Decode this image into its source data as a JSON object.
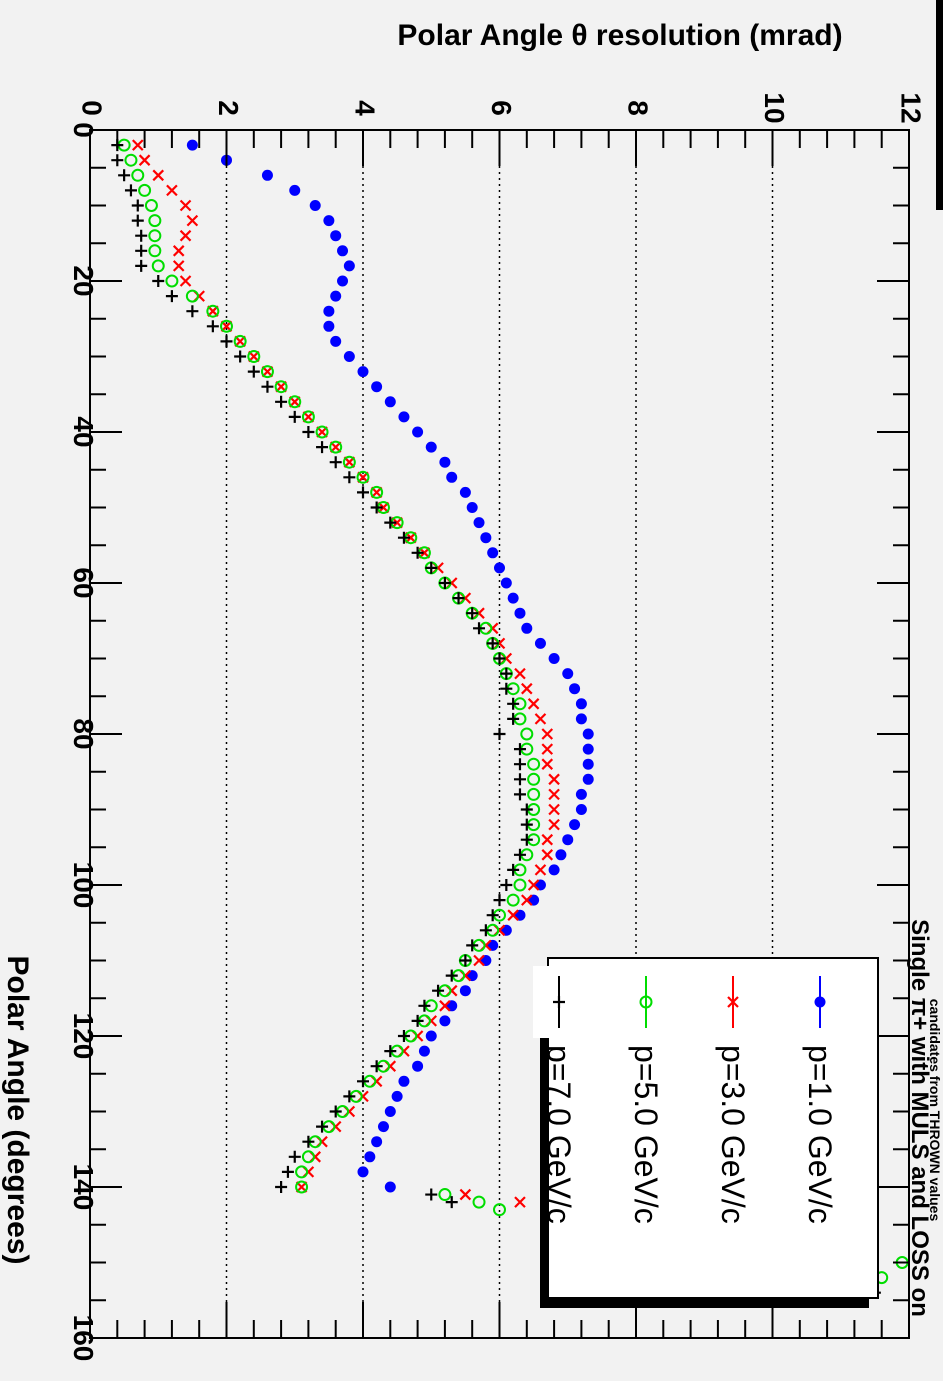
{
  "chart_data": {
    "type": "scatter",
    "title": "Single π+ with MULS and LOSS on",
    "subtitle": "candidates from THROWN values",
    "xlabel": "Polar Angle (degrees)",
    "ylabel": "Polar Angle θ resolution (mrad)",
    "xlim": [
      0,
      160
    ],
    "ylim": [
      0,
      12
    ],
    "xticks": [
      0,
      20,
      40,
      60,
      80,
      100,
      120,
      140,
      160
    ],
    "yticks": [
      0,
      2,
      4,
      6,
      8,
      10,
      12
    ],
    "grid": "horizontal dotted at y=2,4,6,8,10",
    "orientation": "figure rotated 90° clockwise",
    "legend_position": "upper-right",
    "series": [
      {
        "name": "p=1.0 GeV/c",
        "color": "#0000ff",
        "marker": "circle-filled",
        "x": [
          2,
          4,
          6,
          8,
          10,
          12,
          14,
          16,
          18,
          20,
          22,
          24,
          26,
          28,
          30,
          32,
          34,
          36,
          38,
          40,
          42,
          44,
          46,
          48,
          50,
          52,
          54,
          56,
          58,
          60,
          62,
          64,
          66,
          68,
          70,
          72,
          74,
          76,
          78,
          80,
          82,
          84,
          86,
          88,
          90,
          92,
          94,
          96,
          98,
          100,
          102,
          104,
          106,
          108,
          110,
          112,
          114,
          116,
          118,
          120,
          122,
          124,
          126,
          128,
          130,
          132,
          134,
          136,
          138,
          140
        ],
        "y": [
          1.5,
          2.0,
          2.6,
          3.0,
          3.3,
          3.5,
          3.6,
          3.7,
          3.8,
          3.7,
          3.6,
          3.5,
          3.5,
          3.6,
          3.8,
          4.0,
          4.2,
          4.4,
          4.6,
          4.8,
          5.0,
          5.2,
          5.3,
          5.5,
          5.6,
          5.7,
          5.8,
          5.9,
          6.0,
          6.1,
          6.2,
          6.3,
          6.4,
          6.6,
          6.8,
          7.0,
          7.1,
          7.2,
          7.2,
          7.3,
          7.3,
          7.3,
          7.3,
          7.2,
          7.2,
          7.1,
          7.0,
          6.9,
          6.8,
          6.6,
          6.5,
          6.3,
          6.1,
          5.9,
          5.8,
          5.6,
          5.5,
          5.3,
          5.2,
          5.0,
          4.9,
          4.8,
          4.6,
          4.5,
          4.4,
          4.3,
          4.2,
          4.1,
          4.0,
          4.4
        ]
      },
      {
        "name": "p=3.0 GeV/c",
        "color": "#ff0000",
        "marker": "x",
        "x": [
          2,
          4,
          6,
          8,
          10,
          12,
          14,
          16,
          18,
          20,
          22,
          24,
          26,
          28,
          30,
          32,
          34,
          36,
          38,
          40,
          42,
          44,
          46,
          48,
          50,
          52,
          54,
          56,
          58,
          60,
          62,
          64,
          66,
          68,
          70,
          72,
          74,
          76,
          78,
          80,
          82,
          84,
          86,
          88,
          90,
          92,
          94,
          96,
          98,
          100,
          102,
          104,
          106,
          108,
          110,
          112,
          114,
          116,
          118,
          120,
          122,
          124,
          126,
          128,
          130,
          132,
          134,
          136,
          138,
          140,
          141,
          142,
          152,
          154
        ],
        "y": [
          0.7,
          0.8,
          1.0,
          1.2,
          1.4,
          1.5,
          1.4,
          1.3,
          1.3,
          1.4,
          1.6,
          1.8,
          2.0,
          2.2,
          2.4,
          2.6,
          2.8,
          3.0,
          3.2,
          3.4,
          3.6,
          3.8,
          4.0,
          4.2,
          4.3,
          4.5,
          4.7,
          4.9,
          5.1,
          5.3,
          5.5,
          5.7,
          5.9,
          6.0,
          6.1,
          6.3,
          6.4,
          6.5,
          6.6,
          6.7,
          6.7,
          6.7,
          6.8,
          6.8,
          6.8,
          6.8,
          6.7,
          6.7,
          6.6,
          6.5,
          6.4,
          6.2,
          6.0,
          5.8,
          5.7,
          5.5,
          5.3,
          5.2,
          5.0,
          4.8,
          4.6,
          4.4,
          4.2,
          4.0,
          3.8,
          3.6,
          3.4,
          3.3,
          3.2,
          3.1,
          5.5,
          6.3,
          11.3,
          11.1
        ]
      },
      {
        "name": "p=5.0 GeV/c",
        "color": "#00dd00",
        "marker": "circle-open",
        "x": [
          2,
          4,
          6,
          8,
          10,
          12,
          14,
          16,
          18,
          20,
          22,
          24,
          26,
          28,
          30,
          32,
          34,
          36,
          38,
          40,
          42,
          44,
          46,
          48,
          50,
          52,
          54,
          56,
          58,
          60,
          62,
          64,
          66,
          68,
          70,
          72,
          74,
          76,
          78,
          80,
          82,
          84,
          86,
          88,
          90,
          92,
          94,
          96,
          98,
          100,
          102,
          104,
          106,
          108,
          110,
          112,
          114,
          116,
          118,
          120,
          122,
          124,
          126,
          128,
          130,
          132,
          134,
          136,
          138,
          140,
          141,
          142,
          143,
          150,
          152,
          154,
          155
        ],
        "y": [
          0.5,
          0.6,
          0.7,
          0.8,
          0.9,
          0.95,
          0.95,
          0.95,
          1.0,
          1.2,
          1.5,
          1.8,
          2.0,
          2.2,
          2.4,
          2.6,
          2.8,
          3.0,
          3.2,
          3.4,
          3.6,
          3.8,
          4.0,
          4.2,
          4.3,
          4.5,
          4.7,
          4.9,
          5.0,
          5.2,
          5.4,
          5.6,
          5.8,
          5.9,
          6.0,
          6.1,
          6.2,
          6.3,
          6.3,
          6.4,
          6.4,
          6.5,
          6.5,
          6.5,
          6.5,
          6.5,
          6.5,
          6.4,
          6.3,
          6.3,
          6.2,
          6.0,
          5.9,
          5.7,
          5.5,
          5.4,
          5.2,
          5.0,
          4.9,
          4.7,
          4.5,
          4.3,
          4.1,
          3.9,
          3.7,
          3.5,
          3.3,
          3.2,
          3.1,
          3.1,
          5.2,
          5.7,
          6.0,
          11.9,
          11.6,
          11.2,
          11.0
        ]
      },
      {
        "name": "p=7.0 GeV/c",
        "color": "#000000",
        "marker": "plus",
        "x": [
          2,
          4,
          6,
          8,
          10,
          12,
          14,
          16,
          18,
          20,
          22,
          24,
          26,
          28,
          30,
          32,
          34,
          36,
          38,
          40,
          42,
          44,
          46,
          48,
          50,
          52,
          54,
          56,
          58,
          60,
          62,
          64,
          66,
          68,
          70,
          72,
          74,
          76,
          78,
          80,
          82,
          84,
          86,
          88,
          90,
          92,
          94,
          96,
          98,
          100,
          102,
          104,
          106,
          108,
          110,
          112,
          114,
          116,
          118,
          120,
          122,
          124,
          126,
          128,
          130,
          132,
          134,
          136,
          138,
          140,
          141,
          142,
          154,
          155
        ],
        "y": [
          0.4,
          0.4,
          0.5,
          0.6,
          0.7,
          0.7,
          0.75,
          0.75,
          0.75,
          1.0,
          1.2,
          1.5,
          1.8,
          2.0,
          2.2,
          2.4,
          2.6,
          2.8,
          3.0,
          3.2,
          3.4,
          3.6,
          3.8,
          4.0,
          4.2,
          4.4,
          4.6,
          4.8,
          5.0,
          5.2,
          5.4,
          5.6,
          5.7,
          5.9,
          6.0,
          6.1,
          6.1,
          6.2,
          6.2,
          6.0,
          6.3,
          6.3,
          6.3,
          6.3,
          6.4,
          6.4,
          6.4,
          6.3,
          6.2,
          6.1,
          6.0,
          5.9,
          5.8,
          5.6,
          5.5,
          5.3,
          5.1,
          4.9,
          4.8,
          4.6,
          4.4,
          4.2,
          4.0,
          3.8,
          3.6,
          3.4,
          3.2,
          3.0,
          2.9,
          2.8,
          5.0,
          5.3,
          11.5,
          11.1
        ]
      }
    ]
  }
}
